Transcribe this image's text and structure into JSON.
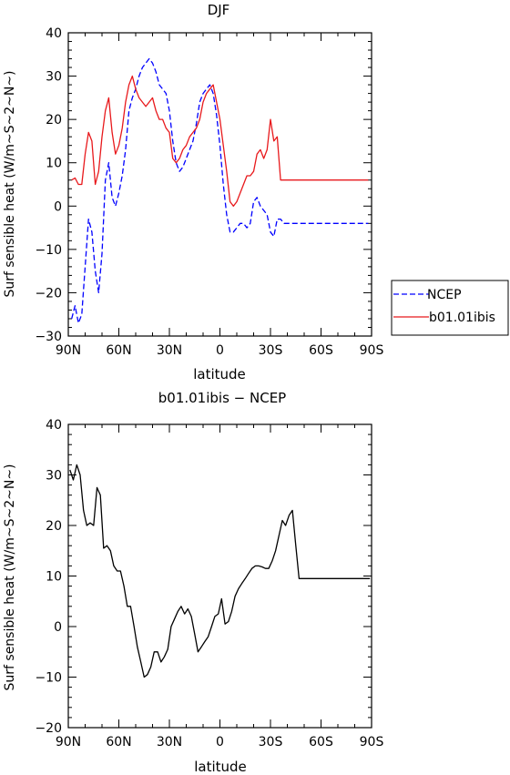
{
  "chart_data": [
    {
      "type": "line",
      "title": "DJF",
      "xlabel": "latitude",
      "ylabel": "Surf sensible heat (W/m~S~2~N~)",
      "xlim": [
        -90,
        90
      ],
      "ylim": [
        -30,
        40
      ],
      "xticks": [
        -90,
        -60,
        -30,
        0,
        30,
        60,
        90
      ],
      "xticklabels": [
        "90N",
        "60N",
        "30N",
        "0",
        "30S",
        "60S",
        "90S"
      ],
      "yticks": [
        -30,
        -20,
        -10,
        0,
        10,
        20,
        30,
        40
      ],
      "yticklabels": [
        "−30",
        "−20",
        "−10",
        "0",
        "10",
        "20",
        "30",
        "40"
      ],
      "legend_position": "right",
      "series": [
        {
          "name": "NCEP",
          "color": "#0000ff",
          "dash": "dashed",
          "x": [
            -88,
            -86,
            -84,
            -82,
            -80,
            -78,
            -76,
            -74,
            -72,
            -70,
            -68,
            -66,
            -64,
            -62,
            -60,
            -58,
            -56,
            -54,
            -52,
            -50,
            -48,
            -46,
            -44,
            -42,
            -40,
            -38,
            -36,
            -34,
            -32,
            -30,
            -28,
            -26,
            -24,
            -22,
            -20,
            -18,
            -16,
            -14,
            -12,
            -10,
            -8,
            -6,
            -4,
            -2,
            0,
            2,
            4,
            6,
            8,
            10,
            12,
            14,
            16,
            18,
            20,
            22,
            24,
            26,
            28,
            30,
            32,
            34,
            36,
            38,
            40,
            42,
            44,
            46,
            48,
            50,
            52,
            54,
            56,
            58,
            60,
            62,
            64,
            66,
            68,
            70,
            72,
            74,
            76,
            78,
            80,
            82,
            84,
            86,
            88
          ],
          "values": [
            -26,
            -23,
            -27,
            -25,
            -14,
            -3,
            -6,
            -15,
            -20,
            -11,
            6,
            10,
            2,
            0,
            3,
            7,
            13,
            22,
            25,
            27,
            30,
            32,
            33,
            34,
            33,
            31,
            28,
            27,
            26,
            22,
            15,
            10,
            8,
            9,
            11,
            13,
            15,
            19,
            24,
            26,
            27,
            28,
            26,
            21,
            14,
            5,
            -2,
            -6,
            -6,
            -5,
            -4,
            -4,
            -5,
            -4,
            1,
            2,
            0,
            -1,
            -2,
            -6,
            -7,
            -3,
            -3,
            -4,
            -4,
            -4,
            -4,
            -4,
            -4,
            -4,
            -4,
            -4,
            -4,
            -4,
            -4,
            -4,
            -4,
            -4,
            -4,
            -4,
            -4,
            -4,
            -4,
            -4,
            -4,
            -4,
            -4,
            -4,
            -4
          ]
        },
        {
          "name": "b01.01ibis",
          "color": "#e8191c",
          "dash": "solid",
          "x": [
            -88,
            -86,
            -84,
            -82,
            -80,
            -78,
            -76,
            -74,
            -72,
            -70,
            -68,
            -66,
            -64,
            -62,
            -60,
            -58,
            -56,
            -54,
            -52,
            -50,
            -48,
            -46,
            -44,
            -42,
            -40,
            -38,
            -36,
            -34,
            -32,
            -30,
            -28,
            -26,
            -24,
            -22,
            -20,
            -18,
            -16,
            -14,
            -12,
            -10,
            -8,
            -6,
            -4,
            -2,
            0,
            2,
            4,
            6,
            8,
            10,
            12,
            14,
            16,
            18,
            20,
            22,
            24,
            26,
            28,
            30,
            32,
            34,
            36,
            38,
            40,
            42,
            44,
            46,
            48,
            50,
            52,
            54,
            56,
            58,
            60,
            62,
            64,
            66,
            68,
            70,
            72,
            74,
            76,
            78,
            80,
            82,
            84,
            86,
            88
          ],
          "values": [
            6,
            6.5,
            5,
            5,
            12,
            17,
            15,
            5,
            8,
            16,
            22,
            25,
            17,
            12,
            14,
            18,
            24,
            28,
            30,
            27,
            25,
            24,
            23,
            24,
            25,
            22,
            20,
            20,
            18,
            17,
            11,
            10,
            11,
            13,
            14,
            16,
            17,
            18,
            20,
            24,
            26,
            27,
            28,
            24,
            20,
            14,
            8,
            1,
            0,
            1,
            3,
            5,
            7,
            7,
            8,
            12,
            13,
            11,
            13,
            20,
            15,
            16,
            6,
            6,
            6,
            6,
            6,
            6,
            6,
            6,
            6,
            6,
            6,
            6,
            6,
            6,
            6,
            6,
            6,
            6,
            6,
            6,
            6,
            6,
            6,
            6,
            6,
            6,
            6
          ]
        }
      ]
    },
    {
      "type": "line",
      "title": "b01.01ibis − NCEP",
      "xlabel": "latitude",
      "ylabel": "Surf sensible heat (W/m~S~2~N~)",
      "xlim": [
        -90,
        90
      ],
      "ylim": [
        -20,
        40
      ],
      "xticks": [
        -90,
        -60,
        -30,
        0,
        30,
        60,
        90
      ],
      "xticklabels": [
        "90N",
        "60N",
        "30N",
        "0",
        "30S",
        "60S",
        "90S"
      ],
      "yticks": [
        -20,
        -10,
        0,
        10,
        20,
        30,
        40
      ],
      "yticklabels": [
        "−20",
        "−10",
        "0",
        "10",
        "20",
        "30",
        "40"
      ],
      "series": [
        {
          "color": "#000000",
          "dash": "solid",
          "x": [
            -89,
            -87,
            -85,
            -83,
            -81,
            -79,
            -77,
            -75,
            -73,
            -71,
            -69,
            -67,
            -65,
            -63,
            -61,
            -59,
            -57,
            -55,
            -53,
            -51,
            -49,
            -47,
            -45,
            -43,
            -41,
            -39,
            -37,
            -35,
            -33,
            -31,
            -29,
            -27,
            -25,
            -23,
            -21,
            -19,
            -17,
            -15,
            -13,
            -11,
            -9,
            -7,
            -5,
            -3,
            -1,
            1,
            3,
            5,
            7,
            9,
            11,
            13,
            15,
            17,
            19,
            21,
            23,
            25,
            27,
            29,
            31,
            33,
            35,
            37,
            39,
            41,
            43,
            45,
            47,
            49,
            51,
            53,
            55,
            57,
            59,
            61,
            63,
            65,
            67,
            69,
            71,
            73,
            75,
            77,
            79,
            81,
            83,
            85,
            87,
            89
          ],
          "values": [
            31,
            29,
            32,
            30,
            23,
            20,
            20.5,
            20,
            27.5,
            26,
            15.5,
            16,
            15,
            12,
            11,
            11,
            8,
            4,
            4,
            0,
            -4,
            -7,
            -10,
            -9.5,
            -8,
            -5,
            -5,
            -7,
            -6,
            -4.5,
            0,
            1.5,
            3,
            4,
            2.5,
            3.5,
            2,
            -1.5,
            -5,
            -4,
            -3,
            -2,
            0,
            2,
            2.5,
            5.5,
            0.5,
            1,
            3,
            6,
            7.5,
            8.5,
            9.5,
            10.5,
            11.5,
            12,
            12,
            11.8,
            11.5,
            11.5,
            13,
            15,
            18,
            21,
            20,
            22,
            23,
            16,
            9.5,
            9.5,
            9.5,
            9.5,
            9.5,
            9.5,
            9.5,
            9.5,
            9.5,
            9.5,
            9.5,
            9.5,
            9.5,
            9.5,
            9.5,
            9.5,
            9.5,
            9.5,
            9.5,
            9.5,
            9.5,
            9.5
          ]
        }
      ]
    }
  ]
}
